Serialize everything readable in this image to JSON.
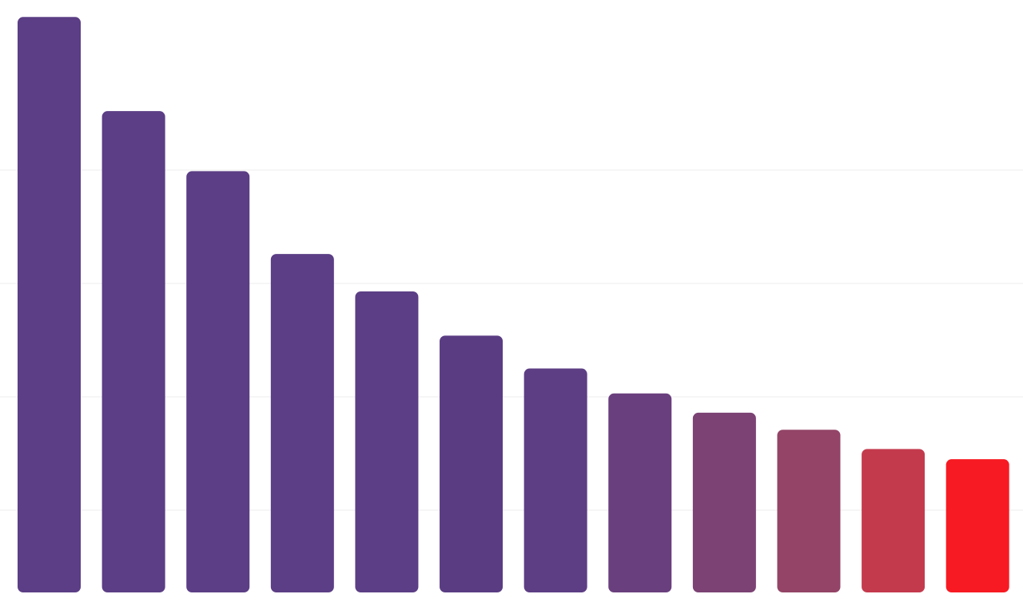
{
  "chart_data": {
    "type": "bar",
    "categories": [
      null,
      null,
      null,
      null,
      null,
      null,
      null,
      null,
      null,
      null,
      null,
      null
    ],
    "values": [
      535,
      452,
      399,
      326,
      293,
      254,
      225,
      203,
      186,
      171,
      154,
      145
    ],
    "colors": [
      "#5b3e85",
      "#5b3e85",
      "#5b3e85",
      "#5b3e85",
      "#5b3e85",
      "#5a3c83",
      "#5d3e84",
      "#6a3f7e",
      "#7c4274",
      "#934467",
      "#c43a4d",
      "#f71a22"
    ],
    "ylim": [
      27.5,
      550
    ],
    "yticks": [
      100,
      200,
      300,
      400
    ],
    "grid": true
  }
}
